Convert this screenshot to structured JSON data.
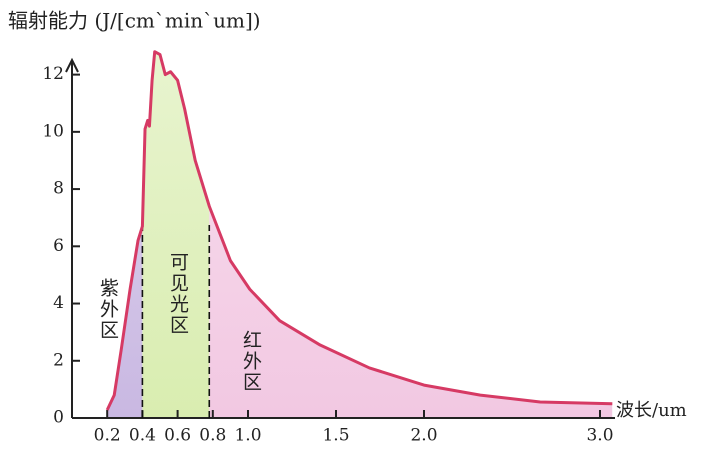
{
  "chart_data": {
    "type": "line",
    "title": "辐射能力 (J/[cm`min`um])",
    "x_label": "波长/um",
    "series": [
      {
        "color": "#d63a64",
        "x": [
          0.2,
          0.24,
          0.28,
          0.33,
          0.375,
          0.4,
          0.415,
          0.43,
          0.44,
          0.455,
          0.47,
          0.5,
          0.53,
          0.56,
          0.6,
          0.64,
          0.7,
          0.78,
          0.9,
          1.01,
          1.18,
          1.41,
          1.69,
          2.0,
          2.32,
          2.66,
          3.07
        ],
        "values": [
          0.28,
          0.8,
          2.4,
          4.5,
          6.2,
          6.7,
          10.1,
          10.4,
          10.2,
          11.8,
          12.8,
          12.7,
          12.0,
          12.1,
          11.8,
          10.8,
          9.0,
          7.4,
          5.5,
          4.5,
          3.4,
          2.55,
          1.75,
          1.15,
          0.8,
          0.56,
          0.5
        ]
      }
    ],
    "regions": [
      {
        "name": "紫外区",
        "start": 0.2,
        "end": 0.4,
        "color": "#c9b8e2"
      },
      {
        "name": "可见光区",
        "start": 0.4,
        "end": 0.78,
        "color": "#d9edb0"
      },
      {
        "name": "红外区",
        "start": 0.78,
        "end": 3.07,
        "color": "#f2c8e2"
      }
    ],
    "xlim": [
      0,
      3.1
    ],
    "ylim": [
      0,
      13
    ],
    "xticks": [
      0.2,
      0.4,
      0.6,
      0.8,
      {
        "value": 1,
        "label": "1.0"
      },
      1.5,
      {
        "value": 2,
        "label": "2.0"
      },
      {
        "value": 3,
        "label": "3.0"
      }
    ],
    "yticks": [
      0,
      2,
      4,
      6,
      8,
      10,
      12
    ]
  }
}
